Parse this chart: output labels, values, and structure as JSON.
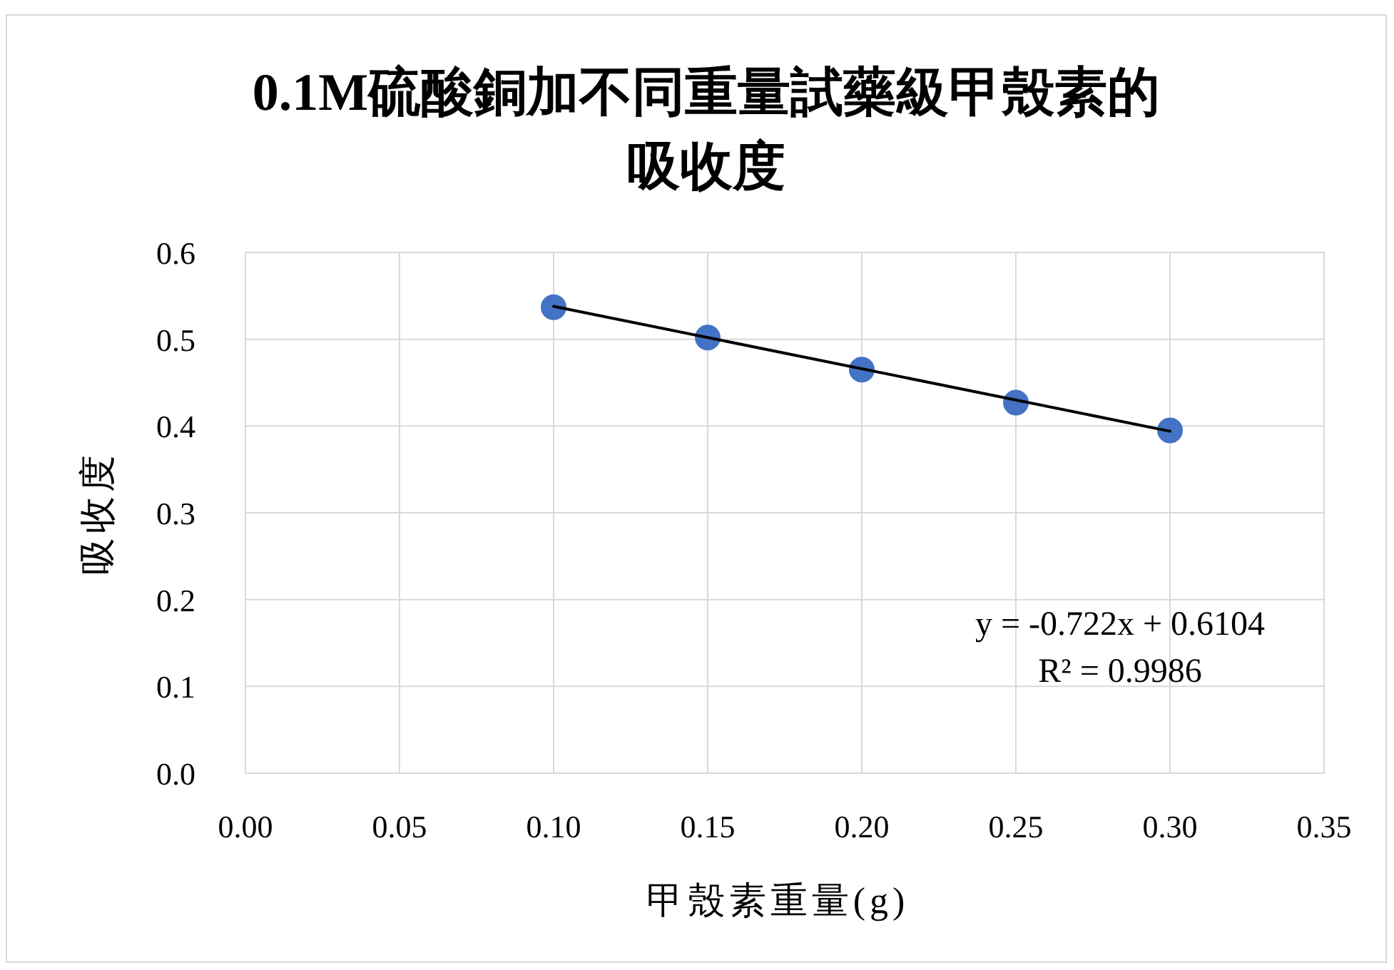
{
  "chart_data": {
    "type": "scatter",
    "title": "0.1M硫酸銅加不同重量試藥級甲殼素的吸收度",
    "xlabel": "甲殼素重量(g)",
    "ylabel": "吸收度",
    "x": [
      0.1,
      0.15,
      0.2,
      0.25,
      0.3
    ],
    "series": [
      {
        "color": "#4472c4",
        "marker": "circle",
        "values": [
          0.537,
          0.502,
          0.465,
          0.427,
          0.395
        ]
      },
      {
        "type": "line",
        "color": "#000000",
        "x": [
          0.1,
          0.3
        ],
        "values": [
          0.538,
          0.394
        ]
      }
    ],
    "xlim": [
      0,
      0.35
    ],
    "ylim": [
      0,
      0.6
    ],
    "xticks": [
      {
        "value": 0,
        "label": "0.00"
      },
      {
        "value": 0.05,
        "label": "0.05"
      },
      {
        "value": 0.1,
        "label": "0.10"
      },
      {
        "value": 0.15,
        "label": "0.15"
      },
      {
        "value": 0.2,
        "label": "0.20"
      },
      {
        "value": 0.25,
        "label": "0.25"
      },
      {
        "value": 0.3,
        "label": "0.30"
      },
      {
        "value": 0.35,
        "label": "0.35"
      }
    ],
    "yticks": [
      {
        "value": 0,
        "label": "0.0"
      },
      {
        "value": 0.1,
        "label": "0.1"
      },
      {
        "value": 0.2,
        "label": "0.2"
      },
      {
        "value": 0.3,
        "label": "0.3"
      },
      {
        "value": 0.4,
        "label": "0.4"
      },
      {
        "value": 0.5,
        "label": "0.5"
      },
      {
        "value": 0.6,
        "label": "0.6"
      }
    ],
    "grid": true,
    "annotations": [
      "y = -0.722x + 0.6104",
      "R² = 0.9986"
    ]
  }
}
